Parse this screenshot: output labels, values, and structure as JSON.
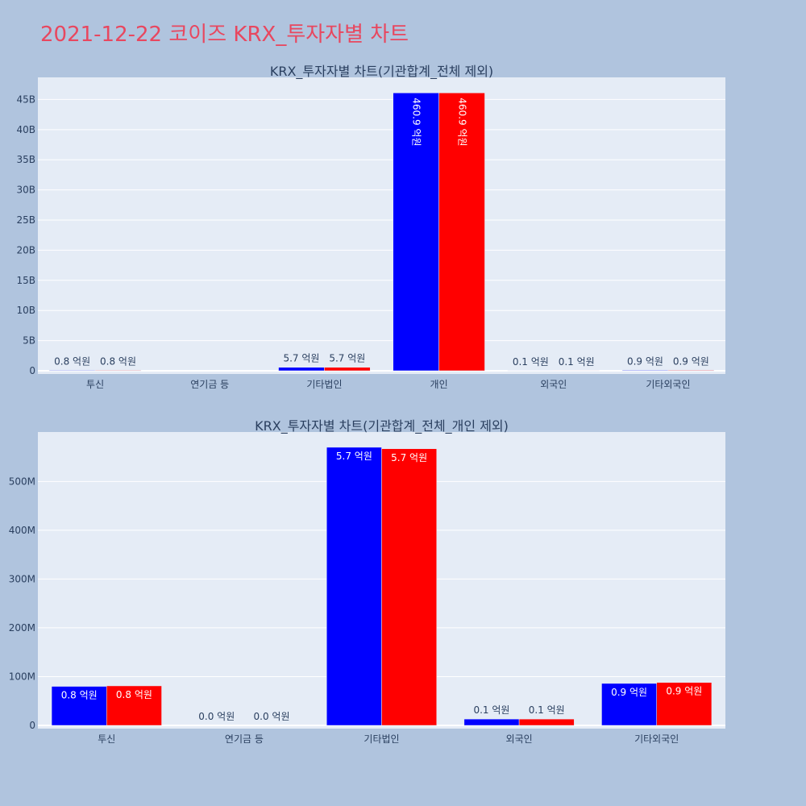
{
  "page_title": "2021-12-22 코이즈 KRX_투자자별 차트",
  "colors": {
    "series1": "#0000ff",
    "series2": "#ff0000",
    "plot_bg": "#e5ecf6",
    "page_bg": "#b0c4de",
    "title": "#e8475f",
    "text": "#2a3f5f"
  },
  "chart_data": [
    {
      "type": "bar",
      "title": "KRX_투자자별 차트(기관합계_전체 제외)",
      "categories": [
        "투신",
        "연기금 등",
        "기타법인",
        "개인",
        "외국인",
        "기타외국인"
      ],
      "series": [
        {
          "values": [
            80000000,
            0,
            570000000,
            46090000000,
            10000000,
            90000000
          ],
          "labels": [
            "0.8 억원",
            "",
            "5.7 억원",
            "460.9 억원",
            "0.1 억원",
            "0.9 억원"
          ]
        },
        {
          "values": [
            80000000,
            0,
            570000000,
            46090000000,
            10000000,
            90000000
          ],
          "labels": [
            "0.8 억원",
            "",
            "5.7 억원",
            "460.9 억원",
            "0.1 억원",
            "0.9 억원"
          ]
        }
      ],
      "yticks": [
        0,
        5000000000,
        10000000000,
        15000000000,
        20000000000,
        25000000000,
        30000000000,
        35000000000,
        40000000000,
        45000000000
      ],
      "ytick_labels": [
        "0",
        "5B",
        "10B",
        "15B",
        "20B",
        "25B",
        "30B",
        "35B",
        "40B",
        "45B"
      ],
      "ylim": [
        0,
        48400000000
      ],
      "grid": true,
      "xlabel": "",
      "ylabel": ""
    },
    {
      "type": "bar",
      "title": "KRX_투자자별 차트(기관합계_전체_개인 제외)",
      "categories": [
        "투신",
        "연기금 등",
        "기타법인",
        "외국인",
        "기타외국인"
      ],
      "series": [
        {
          "values": [
            80000000,
            0,
            570000000,
            13000000,
            86000000
          ],
          "labels": [
            "0.8 억원",
            "0.0 억원",
            "5.7 억원",
            "0.1 억원",
            "0.9 억원"
          ]
        },
        {
          "values": [
            81000000,
            0,
            567000000,
            13000000,
            88000000
          ],
          "labels": [
            "0.8 억원",
            "0.0 억원",
            "5.7 억원",
            "0.1 억원",
            "0.9 억원"
          ]
        }
      ],
      "yticks": [
        0,
        100000000,
        200000000,
        300000000,
        400000000,
        500000000
      ],
      "ytick_labels": [
        "0",
        "100M",
        "200M",
        "300M",
        "400M",
        "500M"
      ],
      "ylim": [
        0,
        598000000
      ],
      "grid": true,
      "xlabel": "",
      "ylabel": ""
    }
  ]
}
